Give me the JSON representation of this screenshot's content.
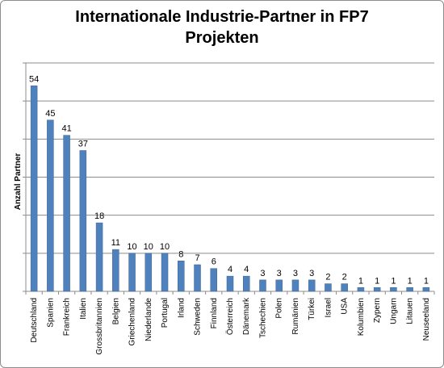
{
  "chart_data": {
    "type": "bar",
    "title": "Internationale Industrie-Partner in FP7\nProjekten",
    "ylabel": "Anzahl Partner",
    "xlabel": "",
    "categories": [
      "Deutschland",
      "Spanien",
      "Frankreich",
      "Italien",
      "Grossbritannien",
      "Belgien",
      "Griechenland",
      "Niederlande",
      "Portugal",
      "Irland",
      "Schweden",
      "Finnland",
      "Österreich",
      "Dänemark",
      "Tschechien",
      "Polen",
      "Rumänien",
      "Türkei",
      "Israel",
      "USA",
      "Kolumbien",
      "Zypern",
      "Ungarn",
      "Litauen",
      "Neuseeland"
    ],
    "values": [
      54,
      45,
      41,
      37,
      18,
      11,
      10,
      10,
      10,
      8,
      7,
      6,
      4,
      4,
      3,
      3,
      3,
      3,
      2,
      2,
      1,
      1,
      1,
      1,
      1
    ],
    "ylim": [
      0,
      60
    ],
    "grid": true,
    "colors": {
      "bar": "#4f81bd",
      "bar_edge": "#3c6696",
      "grid": "#8c8c8c",
      "axis": "#8c8c8c"
    }
  }
}
